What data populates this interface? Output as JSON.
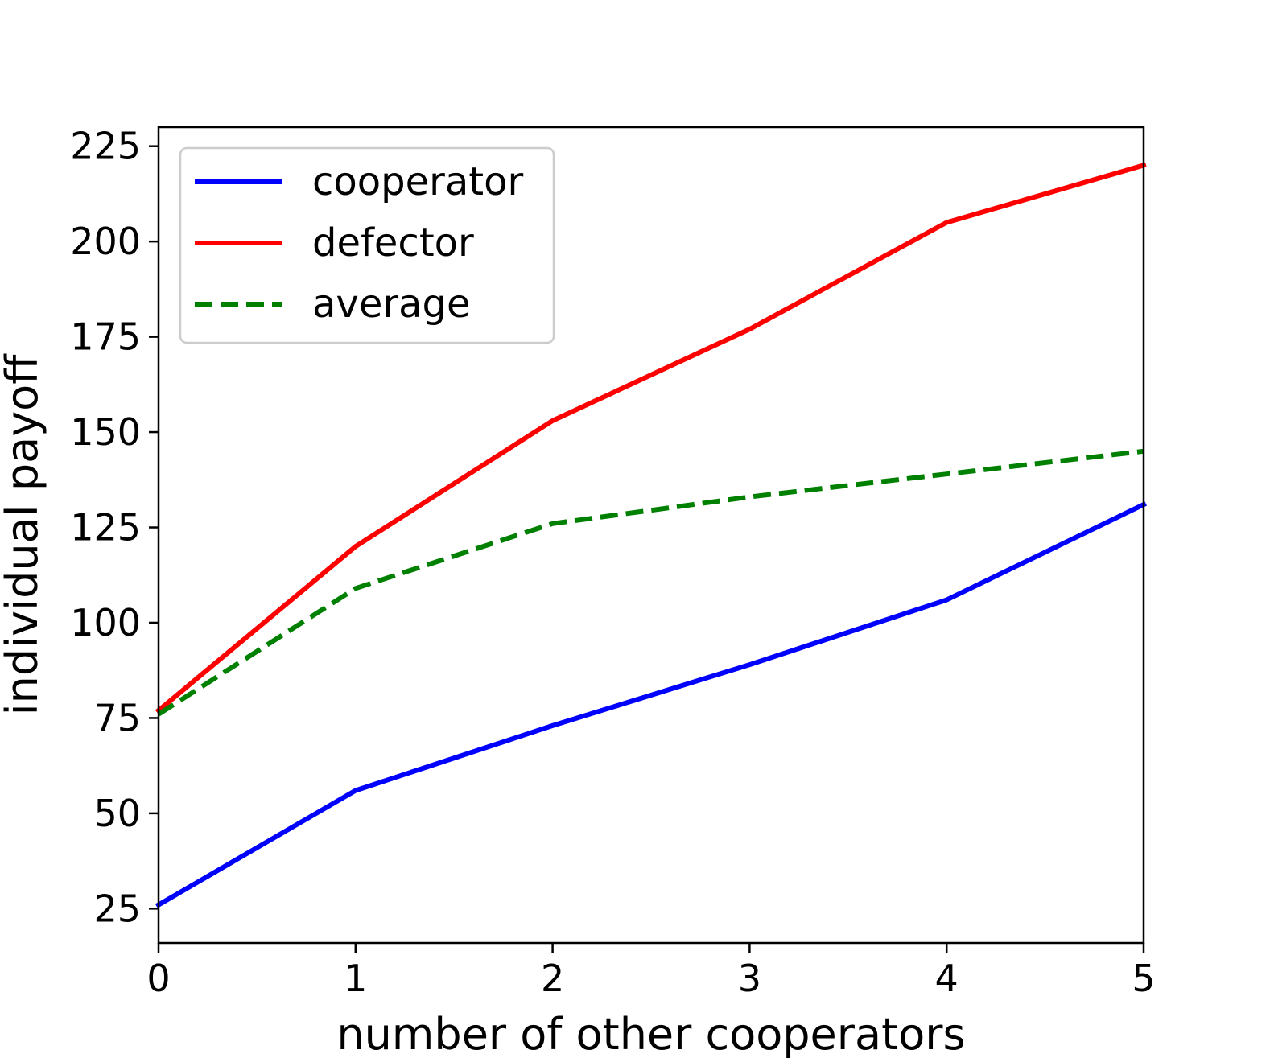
{
  "chart_data": {
    "type": "line",
    "title": "",
    "xlabel": "number of other cooperators",
    "ylabel": "individual payoff",
    "x": [
      0,
      1,
      2,
      3,
      4,
      5
    ],
    "xlim": [
      0,
      5
    ],
    "ylim": [
      16,
      230
    ],
    "xticks": [
      0,
      1,
      2,
      3,
      4,
      5
    ],
    "yticks": [
      25,
      50,
      75,
      100,
      125,
      150,
      175,
      200,
      225
    ],
    "grid": false,
    "legend_position": "upper-left",
    "series": [
      {
        "name": "cooperator",
        "values": [
          26,
          56,
          73,
          89,
          106,
          131
        ],
        "color": "#0000ff",
        "style": "solid"
      },
      {
        "name": "defector",
        "values": [
          77,
          120,
          153,
          177,
          205,
          220
        ],
        "color": "#ff0000",
        "style": "solid"
      },
      {
        "name": "average",
        "values": [
          76,
          109,
          126,
          133,
          139,
          145
        ],
        "color": "#008000",
        "style": "dashed"
      }
    ]
  }
}
